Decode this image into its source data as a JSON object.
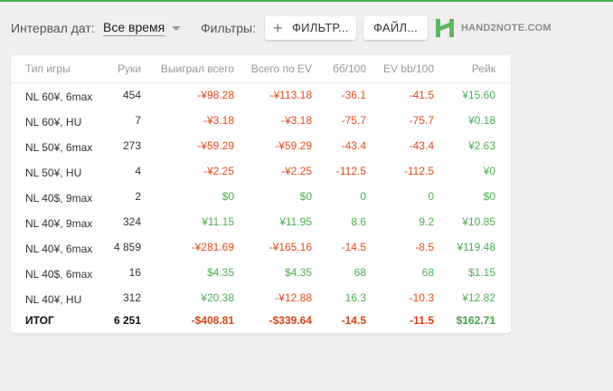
{
  "toolbar": {
    "interval_label": "Интервал дат:",
    "interval_value": "Все время",
    "filters_label": "Фильтры:",
    "filters_button": "ФИЛЬТР...",
    "files_button": "ФАЙЛ...",
    "logo_text": "HAND2NOTE.COM"
  },
  "table": {
    "headers": [
      "Тип игры",
      "Руки",
      "Выиграл всего",
      "Всего по EV",
      "бб/100",
      "EV bb/100",
      "Рейк"
    ],
    "rows": [
      {
        "type": "NL 60¥, 6max",
        "hands": "454",
        "won": "-¥98.28",
        "ev": "-¥113.18",
        "bb": "-36.1",
        "evbb": "-41.5",
        "rake": "¥15.60"
      },
      {
        "type": "NL 60¥, HU",
        "hands": "7",
        "won": "-¥3.18",
        "ev": "-¥3.18",
        "bb": "-75.7",
        "evbb": "-75.7",
        "rake": "¥0.18"
      },
      {
        "type": "NL 50¥, 6max",
        "hands": "273",
        "won": "-¥59.29",
        "ev": "-¥59.29",
        "bb": "-43.4",
        "evbb": "-43.4",
        "rake": "¥2.63"
      },
      {
        "type": "NL 50¥, HU",
        "hands": "4",
        "won": "-¥2.25",
        "ev": "-¥2.25",
        "bb": "-112.5",
        "evbb": "-112.5",
        "rake": "¥0"
      },
      {
        "type": "NL 40$, 9max",
        "hands": "2",
        "won": "$0",
        "ev": "$0",
        "bb": "0",
        "evbb": "0",
        "rake": "$0"
      },
      {
        "type": "NL 40¥, 9max",
        "hands": "324",
        "won": "¥11.15",
        "ev": "¥11.95",
        "bb": "8.6",
        "evbb": "9.2",
        "rake": "¥10.85"
      },
      {
        "type": "NL 40¥, 6max",
        "hands": "4 859",
        "won": "-¥281.69",
        "ev": "-¥165.16",
        "bb": "-14.5",
        "evbb": "-8.5",
        "rake": "¥119.48"
      },
      {
        "type": "NL 40$, 6max",
        "hands": "16",
        "won": "$4.35",
        "ev": "$4.35",
        "bb": "68",
        "evbb": "68",
        "rake": "$1.15"
      },
      {
        "type": "NL 40¥, HU",
        "hands": "312",
        "won": "¥20.38",
        "ev": "-¥12.88",
        "bb": "16.3",
        "evbb": "-10.3",
        "rake": "¥12.82"
      }
    ],
    "total": {
      "type": "ИТОГ",
      "hands": "6 251",
      "won": "-$408.81",
      "ev": "-$339.64",
      "bb": "-14.5",
      "evbb": "-11.5",
      "rake": "$162.71"
    }
  },
  "colors": {
    "accent": "#4caf50",
    "negative": "#e64a19",
    "positive": "#4caf50",
    "background": "#efefef"
  },
  "icons": {
    "add": "plus-icon",
    "dropdown": "caret-down-icon",
    "logo": "hand2note-logo-icon"
  }
}
